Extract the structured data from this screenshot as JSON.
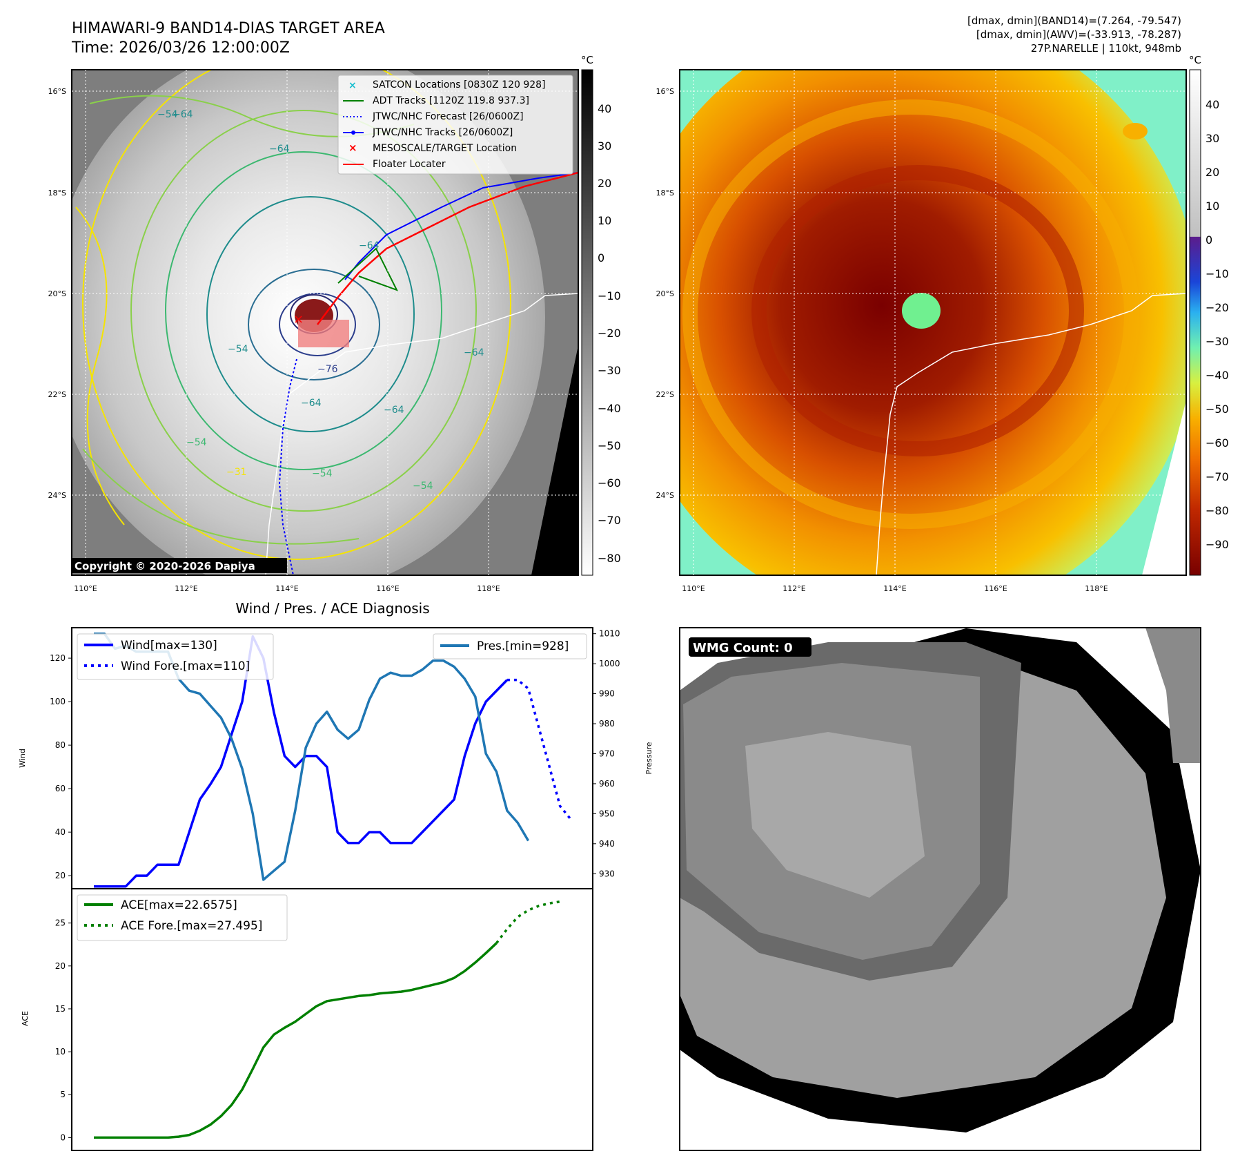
{
  "header": {
    "title_line1": "HIMAWARI-9 BAND14-DIAS TARGET AREA",
    "title_line2": "Time: 2026/03/26 12:00:00Z",
    "info_line1": "[dmax, dmin](BAND14)=(7.264, -79.547)",
    "info_line2": "[dmax, dmin](AWV)=(-33.913, -78.287)",
    "info_line3": "27P.NARELLE | 110kt, 948mb"
  },
  "map_panel": {
    "lat_labels": [
      "16°S",
      "18°S",
      "20°S",
      "22°S",
      "24°S"
    ],
    "lon_labels": [
      "110°E",
      "112°E",
      "114°E",
      "116°E",
      "118°E"
    ],
    "colorbar_unit": "°C",
    "colorbar_ticks": [
      "40",
      "30",
      "20",
      "10",
      "0",
      "−10",
      "−20",
      "−30",
      "−40",
      "−50",
      "−60",
      "−70",
      "−80"
    ],
    "contour_labels": [
      "−64",
      "−54",
      "−64",
      "−54",
      "−76",
      "−64",
      "−64",
      "−54",
      "−54",
      "−31",
      "−54",
      "−64",
      "−64"
    ],
    "copyright": "Copyright © 2020-2026 Dapiya",
    "legend": [
      {
        "label": "SATCON Locations [0830Z 120 928]",
        "color": "#17becf",
        "symbol": "x"
      },
      {
        "label": "ADT Tracks [1120Z 119.8 937.3]",
        "color": "#008000",
        "symbol": "line"
      },
      {
        "label": "JTWC/NHC Forecast [26/0600Z]",
        "color": "#0000ff",
        "symbol": "dotted"
      },
      {
        "label": "JTWC/NHC Tracks [26/0600Z]",
        "color": "#0000ff",
        "symbol": "line-dot"
      },
      {
        "label": "MESOSCALE/TARGET Location",
        "color": "#ff0000",
        "symbol": "x"
      },
      {
        "label": "Floater Locater",
        "color": "#ff0000",
        "symbol": "line"
      }
    ]
  },
  "awv_panel": {
    "lat_labels": [
      "16°S",
      "18°S",
      "20°S",
      "22°S",
      "24°S"
    ],
    "lon_labels": [
      "110°E",
      "112°E",
      "114°E",
      "116°E",
      "118°E"
    ],
    "colorbar_unit": "°C",
    "colorbar_ticks": [
      "40",
      "30",
      "20",
      "10",
      "0",
      "−10",
      "−20",
      "−30",
      "−40",
      "−50",
      "−60",
      "−70",
      "−80",
      "−90"
    ]
  },
  "wmg_panel": {
    "badge": "WMG Count: 0"
  },
  "chart_data": [
    {
      "type": "line",
      "title": "Wind / Pres. / ACE Diagnosis",
      "ylabel": "Wind",
      "y2label": "Pressure",
      "ylim": [
        14,
        134
      ],
      "y2lim": [
        925,
        1012
      ],
      "yticks": [
        20,
        40,
        60,
        80,
        100,
        120
      ],
      "y2ticks": [
        930,
        940,
        950,
        960,
        970,
        980,
        990,
        1000,
        1010
      ],
      "series": [
        {
          "name": "Wind[max=130]",
          "axis": "left",
          "color": "#0000ff",
          "style": "solid",
          "values": [
            [
              0,
              15
            ],
            [
              1,
              15
            ],
            [
              2,
              15
            ],
            [
              3,
              15
            ],
            [
              4,
              20
            ],
            [
              5,
              20
            ],
            [
              6,
              25
            ],
            [
              7,
              25
            ],
            [
              8,
              25
            ],
            [
              9,
              40
            ],
            [
              10,
              55
            ],
            [
              11,
              62
            ],
            [
              12,
              70
            ],
            [
              13,
              85
            ],
            [
              14,
              100
            ],
            [
              15,
              130
            ],
            [
              16,
              120
            ],
            [
              17,
              95
            ],
            [
              18,
              75
            ],
            [
              19,
              70
            ],
            [
              20,
              75
            ],
            [
              21,
              75
            ],
            [
              22,
              70
            ],
            [
              23,
              40
            ],
            [
              24,
              35
            ],
            [
              25,
              35
            ],
            [
              26,
              40
            ],
            [
              27,
              40
            ],
            [
              28,
              35
            ],
            [
              29,
              35
            ],
            [
              30,
              35
            ],
            [
              31,
              40
            ],
            [
              32,
              45
            ],
            [
              33,
              50
            ],
            [
              34,
              55
            ],
            [
              35,
              75
            ],
            [
              36,
              90
            ],
            [
              37,
              100
            ],
            [
              38,
              105
            ],
            [
              39,
              110
            ]
          ]
        },
        {
          "name": "Wind Fore.[max=110]",
          "axis": "left",
          "color": "#0000ff",
          "style": "dotted",
          "values": [
            [
              39,
              110
            ],
            [
              40,
              110
            ],
            [
              41,
              106
            ],
            [
              42,
              88
            ],
            [
              43,
              70
            ],
            [
              44,
              52
            ],
            [
              45,
              46
            ]
          ]
        },
        {
          "name": "Pres.[min=928]",
          "axis": "right",
          "color": "#1f77b4",
          "style": "solid",
          "values": [
            [
              0,
              1010
            ],
            [
              1,
              1010
            ],
            [
              2,
              1005
            ],
            [
              3,
              1006
            ],
            [
              4,
              1004
            ],
            [
              5,
              1004
            ],
            [
              6,
              1004
            ],
            [
              7,
              1004
            ],
            [
              8,
              995
            ],
            [
              9,
              991
            ],
            [
              10,
              990
            ],
            [
              11,
              986
            ],
            [
              12,
              982
            ],
            [
              13,
              975
            ],
            [
              14,
              965
            ],
            [
              15,
              950
            ],
            [
              16,
              928
            ],
            [
              17,
              931
            ],
            [
              18,
              934
            ],
            [
              19,
              951
            ],
            [
              20,
              972
            ],
            [
              21,
              980
            ],
            [
              22,
              984
            ],
            [
              23,
              978
            ],
            [
              24,
              975
            ],
            [
              25,
              978
            ],
            [
              26,
              988
            ],
            [
              27,
              995
            ],
            [
              28,
              997
            ],
            [
              29,
              996
            ],
            [
              30,
              996
            ],
            [
              31,
              998
            ],
            [
              32,
              1001
            ],
            [
              33,
              1001
            ],
            [
              34,
              999
            ],
            [
              35,
              995
            ],
            [
              36,
              989
            ],
            [
              37,
              970
            ],
            [
              38,
              964
            ],
            [
              39,
              951
            ],
            [
              40,
              947
            ],
            [
              41,
              941
            ]
          ]
        }
      ]
    },
    {
      "type": "line",
      "ylabel": "ACE",
      "ylim": [
        -1.5,
        29
      ],
      "yticks": [
        0,
        5,
        10,
        15,
        20,
        25
      ],
      "series": [
        {
          "name": "ACE[max=22.6575]",
          "color": "#008000",
          "style": "solid",
          "values": [
            [
              0,
              0
            ],
            [
              1,
              0
            ],
            [
              2,
              0
            ],
            [
              3,
              0
            ],
            [
              4,
              0
            ],
            [
              5,
              0
            ],
            [
              6,
              0
            ],
            [
              7,
              0
            ],
            [
              8,
              0.1
            ],
            [
              9,
              0.3
            ],
            [
              10,
              0.8
            ],
            [
              11,
              1.5
            ],
            [
              12,
              2.5
            ],
            [
              13,
              3.8
            ],
            [
              14,
              5.6
            ],
            [
              15,
              8.0
            ],
            [
              16,
              10.5
            ],
            [
              17,
              12.0
            ],
            [
              18,
              12.8
            ],
            [
              19,
              13.5
            ],
            [
              20,
              14.4
            ],
            [
              21,
              15.3
            ],
            [
              22,
              15.9
            ],
            [
              23,
              16.1
            ],
            [
              24,
              16.3
            ],
            [
              25,
              16.5
            ],
            [
              26,
              16.6
            ],
            [
              27,
              16.8
            ],
            [
              28,
              16.9
            ],
            [
              29,
              17.0
            ],
            [
              30,
              17.2
            ],
            [
              31,
              17.5
            ],
            [
              32,
              17.8
            ],
            [
              33,
              18.1
            ],
            [
              34,
              18.6
            ],
            [
              35,
              19.4
            ],
            [
              36,
              20.4
            ],
            [
              37,
              21.5
            ],
            [
              38,
              22.6575
            ]
          ]
        },
        {
          "name": "ACE Fore.[max=27.495]",
          "color": "#008000",
          "style": "dotted",
          "values": [
            [
              38,
              22.6575
            ],
            [
              39,
              24.3
            ],
            [
              40,
              25.7
            ],
            [
              41,
              26.5
            ],
            [
              42,
              27.0
            ],
            [
              43,
              27.3
            ],
            [
              44,
              27.495
            ]
          ]
        }
      ]
    }
  ]
}
